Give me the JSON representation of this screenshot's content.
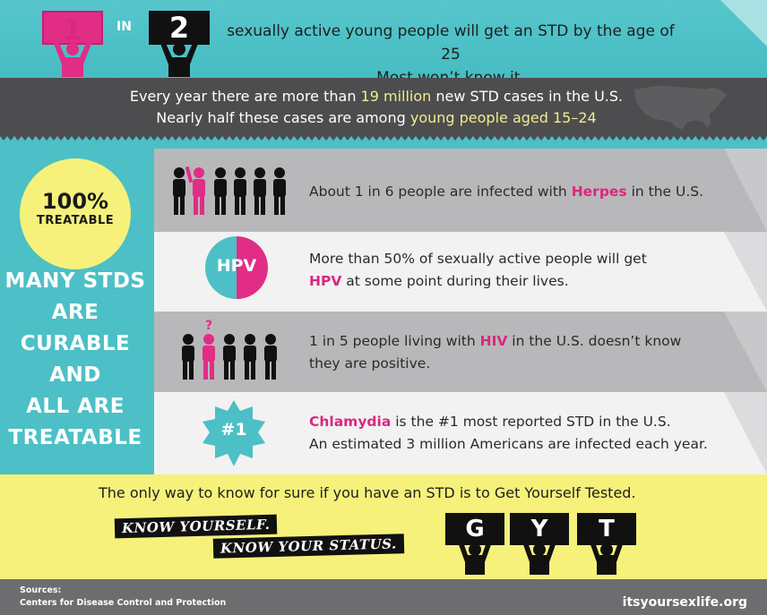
{
  "header": {
    "sign_left": "1",
    "in_label": "IN",
    "sign_right": "2",
    "line1": "sexually active young people will get an STD by the age of 25",
    "line2": "Most won’t know it."
  },
  "stats_band": {
    "line1_pre": "Every year there are more than ",
    "line1_hl": "19 million",
    "line1_post": " new STD cases in the U.S.",
    "line2_pre": "Nearly half these cases are among ",
    "line2_hl": "young people aged 15–24"
  },
  "left_panel": {
    "circle_pct": "100%",
    "circle_label": "TREATABLE",
    "headline": [
      "MANY STDS",
      "ARE",
      "CURABLE",
      "AND",
      "ALL ARE",
      "TREATABLE"
    ]
  },
  "rows": [
    {
      "pre": "About 1 in 6 people are infected with ",
      "hl": "Herpes",
      "post": " in the U.S."
    },
    {
      "line1": "More than 50% of sexually active people will get",
      "hl": "HPV",
      "post": " at some point during their lives.",
      "icon_text": "HPV"
    },
    {
      "pre": "1 in 5 people living with ",
      "hl": "HIV",
      "post": " in the U.S. doesn’t know",
      "line2": "they are positive.",
      "question": "?"
    },
    {
      "hl": "Chlamydia",
      "post": " is the #1 most reported STD in the U.S.",
      "line2": "An estimated 3 million Americans are infected each year.",
      "badge": "#1"
    }
  ],
  "bottom": {
    "text": "The only way to know for sure if you have an STD is to Get Yourself Tested.",
    "tag1": "KNOW YOURSELF.",
    "tag2": "KNOW YOUR STATUS.",
    "letters": [
      "G",
      "Y",
      "T"
    ]
  },
  "footer": {
    "sources_label": "Sources:",
    "source": "Centers for Disease Control and Protection",
    "url": "itsyoursexlife.org"
  },
  "colors": {
    "teal": "#4cc0c6",
    "pink": "#e12d86",
    "yellow": "#f5f17b",
    "dark": "#4d4d4f"
  }
}
